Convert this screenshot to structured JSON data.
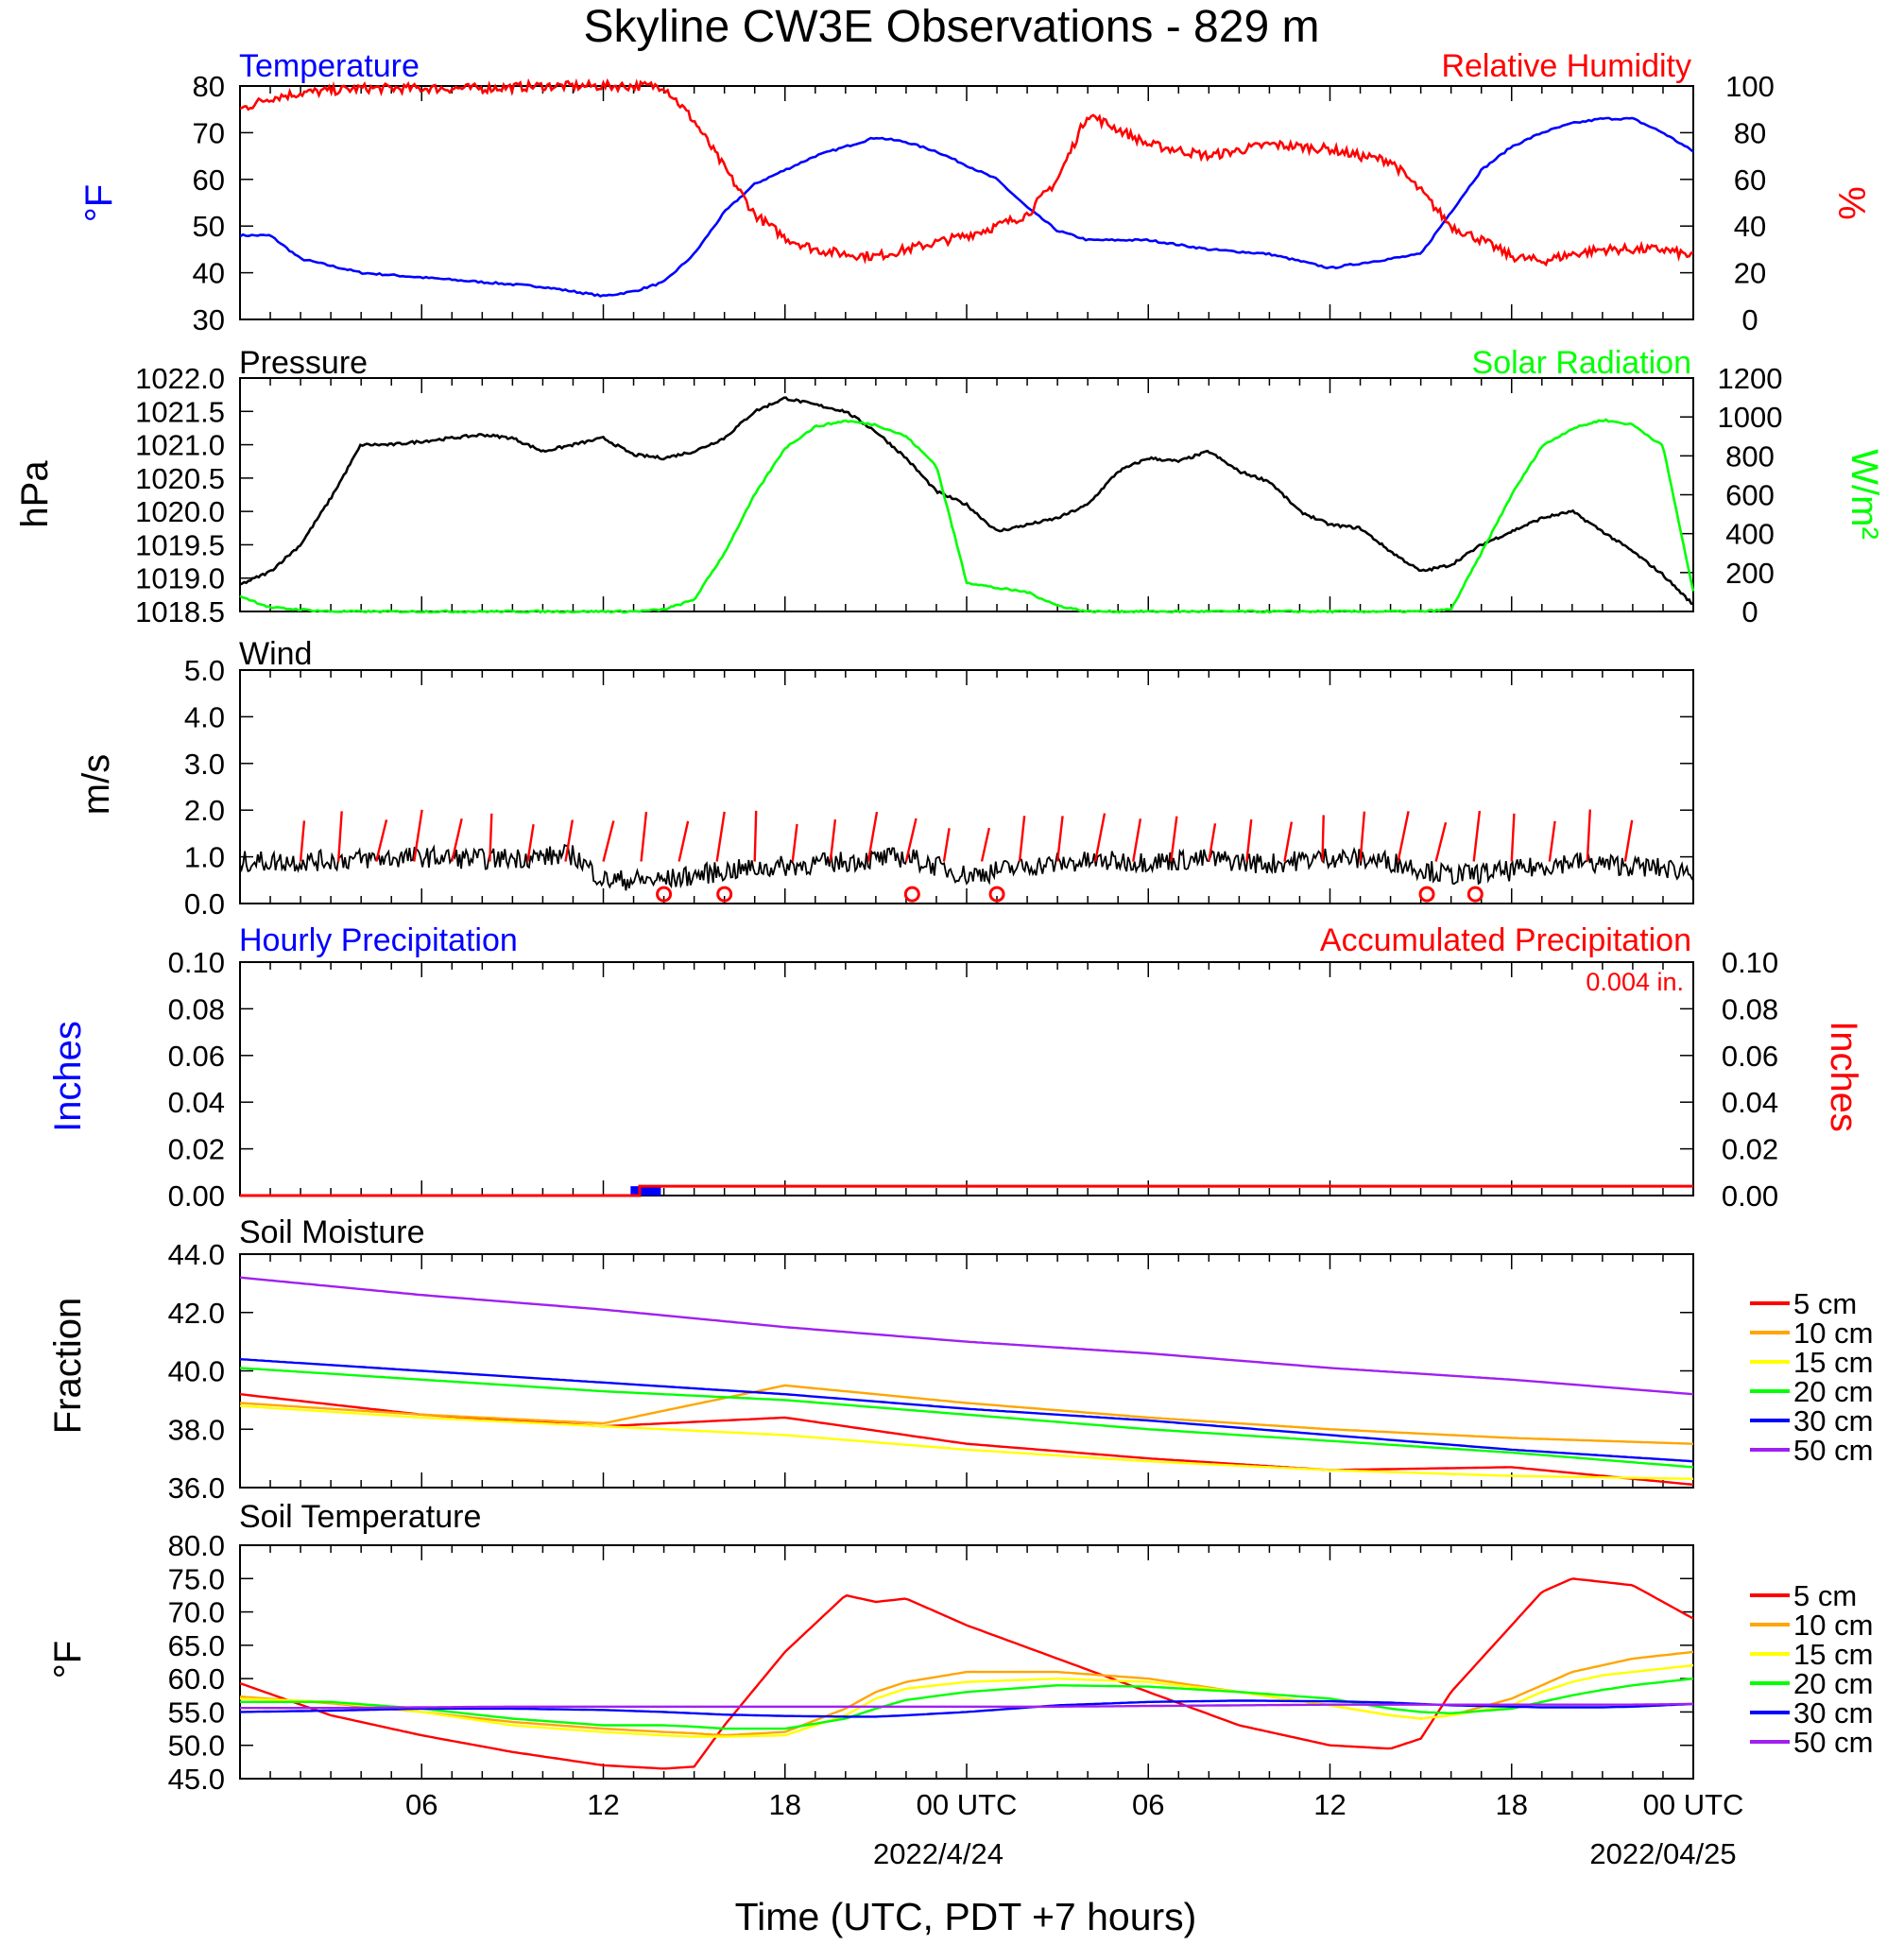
{
  "title": "Skyline CW3E Observations - 829 m",
  "xlabel": "Time (UTC, PDT +7 hours)",
  "x_ticks": [
    "06",
    "12",
    "18",
    "00 UTC",
    "06",
    "12",
    "18",
    "00 UTC"
  ],
  "x_dates": [
    "2022/4/24",
    "2022/04/25"
  ],
  "colors": {
    "temperature": "#0000ff",
    "humidity": "#ff0000",
    "pressure": "#000000",
    "solar": "#00ff00",
    "wind": "#000000",
    "wind_barb": "#ff0000",
    "hourly_precip": "#0000ff",
    "accum_precip": "#ff0000",
    "d5": "#ff0000",
    "d10": "#ffa500",
    "d15": "#ffff00",
    "d20": "#00ff00",
    "d30": "#0000ff",
    "d50": "#a020f0"
  },
  "panels": {
    "temp_rh": {
      "left_title": "Temperature",
      "right_title": "Relative Humidity",
      "left_unit": "°F",
      "right_unit": "%",
      "left_ticks": [
        "80",
        "70",
        "60",
        "50",
        "40",
        "30"
      ],
      "right_ticks": [
        "100",
        "80",
        "60",
        "40",
        "20",
        "0"
      ]
    },
    "pressure": {
      "left_title": "Pressure",
      "right_title": "Solar Radiation",
      "left_unit": "hPa",
      "right_unit": "W/m²",
      "left_ticks": [
        "1022.0",
        "1021.5",
        "1021.0",
        "1020.5",
        "1020.0",
        "1019.5",
        "1019.0",
        "1018.5"
      ],
      "right_ticks": [
        "1200",
        "1000",
        "800",
        "600",
        "400",
        "200",
        "0"
      ]
    },
    "wind": {
      "left_title": "Wind",
      "left_unit": "m/s",
      "left_ticks": [
        "5.0",
        "4.0",
        "3.0",
        "2.0",
        "1.0",
        "0.0"
      ]
    },
    "precip": {
      "left_title": "Hourly Precipitation",
      "right_title": "Accumulated Precipitation",
      "accum_text": "0.004 in.",
      "left_unit": "Inches",
      "right_unit": "Inches",
      "left_ticks": [
        "0.10",
        "0.08",
        "0.06",
        "0.04",
        "0.02",
        "0.00"
      ],
      "right_ticks": [
        "0.10",
        "0.08",
        "0.06",
        "0.04",
        "0.02",
        "0.00"
      ]
    },
    "soil_moisture": {
      "left_title": "Soil Moisture",
      "left_unit": "Fraction",
      "left_ticks": [
        "44.0",
        "42.0",
        "40.0",
        "38.0",
        "36.0"
      ],
      "legend": [
        "5 cm",
        "10 cm",
        "15 cm",
        "20 cm",
        "30 cm",
        "50 cm"
      ]
    },
    "soil_temp": {
      "left_title": "Soil Temperature",
      "left_unit": "°F",
      "left_ticks": [
        "80.0",
        "75.0",
        "70.0",
        "65.0",
        "60.0",
        "55.0",
        "50.0",
        "45.0"
      ],
      "legend": [
        "5 cm",
        "10 cm",
        "15 cm",
        "20 cm",
        "30 cm",
        "50 cm"
      ]
    }
  },
  "chart_data": [
    {
      "type": "line",
      "title": "Temperature / Relative Humidity",
      "x_hours": [
        0,
        1,
        2,
        4,
        6,
        8,
        10,
        12,
        13,
        14,
        15,
        16,
        17,
        18,
        19,
        20,
        21,
        22,
        23,
        24,
        25,
        26,
        27,
        28,
        30,
        32,
        34,
        36,
        37,
        38,
        39,
        40,
        41,
        42,
        43,
        44,
        45,
        46,
        47,
        48
      ],
      "series": [
        {
          "name": "Temperature",
          "axis": "left",
          "units": "F",
          "values": [
            48,
            48,
            43,
            40,
            39,
            38,
            37,
            35,
            36,
            38,
            44,
            53,
            59,
            62,
            65,
            67,
            69,
            68,
            66,
            63,
            60,
            54,
            49,
            47,
            47,
            45,
            44,
            41,
            42,
            43,
            44,
            53,
            62,
            67,
            70,
            72,
            73,
            73,
            70,
            66
          ]
        },
        {
          "name": "Relative Humidity",
          "axis": "right",
          "units": "%",
          "values": [
            90,
            95,
            97,
            99,
            99,
            99,
            100,
            100,
            100,
            100,
            85,
            65,
            45,
            35,
            30,
            28,
            27,
            30,
            33,
            36,
            40,
            45,
            60,
            88,
            75,
            70,
            75,
            73,
            70,
            68,
            55,
            40,
            34,
            27,
            25,
            28,
            30,
            30,
            30,
            27
          ]
        }
      ],
      "ylim_left": [
        30,
        80
      ],
      "ylim_right": [
        0,
        100
      ]
    },
    {
      "type": "line",
      "title": "Pressure / Solar Radiation",
      "x_hours": [
        0,
        1,
        2,
        3,
        4,
        5,
        6,
        7,
        8,
        9,
        10,
        11,
        12,
        13,
        14,
        15,
        16,
        17,
        18,
        19,
        20,
        21,
        22,
        23,
        24,
        25,
        26,
        27,
        28,
        29,
        30,
        31,
        32,
        33,
        34,
        35,
        36,
        37,
        38,
        39,
        40,
        41,
        42,
        43,
        44,
        45,
        46,
        47,
        48
      ],
      "series": [
        {
          "name": "Pressure",
          "axis": "left",
          "units": "hPa",
          "values": [
            1018.9,
            1019.1,
            1019.5,
            1020.2,
            1021.0,
            1021.0,
            1021.05,
            1021.1,
            1021.15,
            1021.1,
            1020.9,
            1021.0,
            1021.1,
            1020.85,
            1020.8,
            1020.9,
            1021.1,
            1021.5,
            1021.7,
            1021.6,
            1021.5,
            1021.2,
            1020.8,
            1020.3,
            1020.1,
            1019.7,
            1019.8,
            1019.9,
            1020.1,
            1020.6,
            1020.8,
            1020.75,
            1020.9,
            1020.6,
            1020.45,
            1020.0,
            1019.8,
            1019.75,
            1019.4,
            1019.1,
            1019.2,
            1019.5,
            1019.7,
            1019.9,
            1020.0,
            1019.7,
            1019.4,
            1019.05,
            1018.6
          ]
        },
        {
          "name": "Solar Radiation",
          "axis": "right",
          "units": "W/m2",
          "values": [
            80,
            20,
            10,
            0,
            0,
            0,
            0,
            0,
            0,
            0,
            0,
            0,
            0,
            0,
            10,
            60,
            300,
            600,
            840,
            950,
            980,
            960,
            900,
            750,
            150,
            120,
            100,
            30,
            0,
            0,
            0,
            0,
            0,
            0,
            0,
            0,
            0,
            0,
            0,
            0,
            10,
            300,
            600,
            850,
            940,
            985,
            960,
            850,
            100
          ]
        }
      ],
      "ylim_left": [
        1018.5,
        1022.0
      ],
      "ylim_right": [
        0,
        1200
      ]
    },
    {
      "type": "line",
      "title": "Wind",
      "x_hours": [
        0,
        2,
        4,
        6,
        8,
        10,
        11,
        12,
        14,
        16,
        18,
        20,
        22,
        24,
        26,
        28,
        30,
        32,
        34,
        36,
        38,
        40,
        42,
        44,
        46,
        48
      ],
      "series": [
        {
          "name": "Wind",
          "units": "m/s",
          "values": [
            0.9,
            0.9,
            0.95,
            1.0,
            0.95,
            1.0,
            1.05,
            0.5,
            0.5,
            0.7,
            0.8,
            0.9,
            1.0,
            0.6,
            0.8,
            0.9,
            0.9,
            0.95,
            0.85,
            1.0,
            0.9,
            0.6,
            0.7,
            0.9,
            0.8,
            0.7
          ]
        }
      ],
      "ylim": [
        0,
        5
      ]
    },
    {
      "type": "bar",
      "title": "Precipitation",
      "x_hours": [
        13.25
      ],
      "series": [
        {
          "name": "Hourly Precipitation",
          "units": "in",
          "values": [
            0.004
          ]
        },
        {
          "name": "Accumulated Precipitation",
          "units": "in",
          "values": [
            0.004
          ]
        }
      ],
      "ylim": [
        0,
        0.1
      ]
    },
    {
      "type": "line",
      "title": "Soil Moisture",
      "x_hours": [
        0,
        6,
        12,
        18,
        24,
        30,
        36,
        42,
        48
      ],
      "series": [
        {
          "name": "5 cm",
          "values": [
            39.2,
            38.5,
            38.1,
            38.4,
            37.5,
            37.0,
            36.6,
            36.7,
            36.1
          ]
        },
        {
          "name": "10 cm",
          "values": [
            38.9,
            38.5,
            38.2,
            39.5,
            38.9,
            38.4,
            38.0,
            37.7,
            37.5
          ]
        },
        {
          "name": "15 cm",
          "values": [
            38.8,
            38.4,
            38.1,
            37.8,
            37.3,
            36.9,
            36.6,
            36.4,
            36.3
          ]
        },
        {
          "name": "20 cm",
          "values": [
            40.1,
            39.7,
            39.3,
            39.0,
            38.5,
            38.0,
            37.6,
            37.2,
            36.7
          ]
        },
        {
          "name": "30 cm",
          "values": [
            40.4,
            40.0,
            39.6,
            39.2,
            38.7,
            38.3,
            37.8,
            37.3,
            36.9
          ]
        },
        {
          "name": "50 cm",
          "values": [
            43.2,
            42.6,
            42.1,
            41.5,
            41.0,
            40.6,
            40.1,
            39.7,
            39.2
          ]
        }
      ],
      "ylim": [
        36,
        44
      ]
    },
    {
      "type": "line",
      "title": "Soil Temperature",
      "x_hours": [
        0,
        3,
        6,
        9,
        12,
        14,
        15,
        16,
        18,
        20,
        21,
        22,
        24,
        27,
        30,
        33,
        36,
        38,
        39,
        40,
        42,
        43,
        44,
        45,
        46,
        48
      ],
      "series": [
        {
          "name": "5 cm",
          "values": [
            59.3,
            54.5,
            51.5,
            49,
            47,
            46.5,
            46.8,
            53,
            64,
            72.5,
            71.5,
            72,
            68,
            63,
            58,
            53,
            50,
            49.5,
            51,
            58,
            68,
            73,
            75,
            74.5,
            74,
            69
          ]
        },
        {
          "name": "10 cm",
          "values": [
            57.3,
            56.3,
            55,
            53.5,
            52.5,
            52,
            51.8,
            51.5,
            52,
            55.5,
            58,
            59.5,
            61,
            61,
            60,
            58,
            56,
            54.5,
            54,
            54.5,
            57,
            59,
            61,
            62,
            63,
            64
          ]
        },
        {
          "name": "15 cm",
          "values": [
            57,
            56.5,
            55,
            53,
            52,
            51.5,
            51.3,
            51.3,
            51.5,
            54.5,
            57,
            58.5,
            59.5,
            60,
            59.5,
            58,
            56,
            54.5,
            54,
            54.5,
            56,
            58,
            59.5,
            60.5,
            61,
            62
          ]
        },
        {
          "name": "20 cm",
          "values": [
            56.5,
            56.5,
            55.5,
            54,
            53,
            53,
            52.8,
            52.5,
            52.5,
            54,
            55.5,
            56.8,
            58,
            59,
            58.8,
            58,
            57,
            55.5,
            55,
            54.8,
            55.5,
            56.5,
            57.5,
            58.3,
            59,
            60
          ]
        },
        {
          "name": "30 cm",
          "values": [
            55,
            55.2,
            55.5,
            55.5,
            55.3,
            55,
            54.8,
            54.6,
            54.4,
            54.3,
            54.3,
            54.5,
            55,
            56,
            56.5,
            56.7,
            56.6,
            56.4,
            56.2,
            56,
            55.8,
            55.7,
            55.7,
            55.7,
            55.8,
            56.2
          ]
        },
        {
          "name": "50 cm",
          "values": [
            55.6,
            55.6,
            55.7,
            55.8,
            55.8,
            55.8,
            55.8,
            55.8,
            55.8,
            55.8,
            55.8,
            55.8,
            55.8,
            55.8,
            55.9,
            56,
            56.1,
            56.1,
            56.1,
            56.1,
            56.1,
            56.1,
            56.1,
            56.1,
            56.1,
            56.2
          ]
        }
      ],
      "ylim": [
        45,
        80
      ]
    }
  ]
}
